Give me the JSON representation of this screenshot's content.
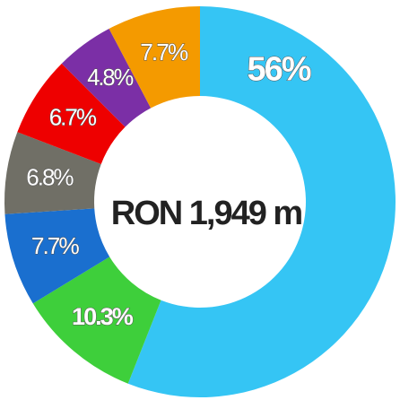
{
  "chart_data": {
    "type": "donut",
    "center_label": "RON 1,949 m",
    "values": [
      56,
      10.3,
      7.7,
      6.8,
      6.7,
      4.8,
      7.7
    ],
    "value_labels": [
      "56%",
      "10.3%",
      "7.7%",
      "6.8%",
      "6.7%",
      "4.8%",
      "7.7%"
    ],
    "colors": [
      "#35c5f4",
      "#3ecf3b",
      "#1a6fcf",
      "#706f66",
      "#ee0000",
      "#7b2fa6",
      "#f49a00"
    ]
  }
}
